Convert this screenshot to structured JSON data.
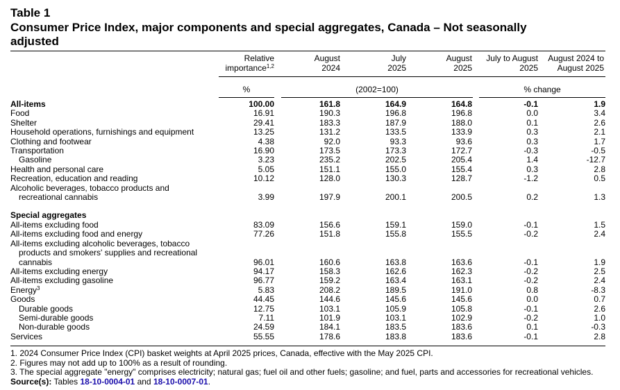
{
  "title": {
    "label": "Table 1",
    "line1": "Consumer Price Index, major components and special aggregates, Canada – Not seasonally",
    "line2": "adjusted"
  },
  "columns": [
    {
      "line1": "Relative",
      "line2": "importance",
      "sup": "1,2"
    },
    {
      "line1": "August",
      "line2": "2024"
    },
    {
      "line1": "July",
      "line2": "2025"
    },
    {
      "line1": "August",
      "line2": "2025"
    },
    {
      "line1": "July to August",
      "line2": "2025"
    },
    {
      "line1": "August 2024 to",
      "line2": "August 2025"
    }
  ],
  "units": {
    "weight": "%",
    "index": "(2002=100)",
    "change": "% change"
  },
  "rows": [
    {
      "label": "All-items",
      "values": [
        "100.00",
        "161.8",
        "164.9",
        "164.8",
        "-0.1",
        "1.9"
      ],
      "bold": true
    },
    {
      "label": "Food",
      "values": [
        "16.91",
        "190.3",
        "196.8",
        "196.8",
        "0.0",
        "3.4"
      ]
    },
    {
      "label": "Shelter",
      "values": [
        "29.41",
        "183.3",
        "187.9",
        "188.0",
        "0.1",
        "2.6"
      ]
    },
    {
      "label": "Household operations, furnishings and equipment",
      "values": [
        "13.25",
        "131.2",
        "133.5",
        "133.9",
        "0.3",
        "2.1"
      ]
    },
    {
      "label": "Clothing and footwear",
      "values": [
        "4.38",
        "92.0",
        "93.3",
        "93.6",
        "0.3",
        "1.7"
      ]
    },
    {
      "label": "Transportation",
      "values": [
        "16.90",
        "173.5",
        "173.3",
        "172.7",
        "-0.3",
        "-0.5"
      ]
    },
    {
      "label": "Gasoline",
      "values": [
        "3.23",
        "235.2",
        "202.5",
        "205.4",
        "1.4",
        "-12.7"
      ],
      "indent": 1
    },
    {
      "label": "Health and personal care",
      "values": [
        "5.05",
        "151.1",
        "155.0",
        "155.4",
        "0.3",
        "2.8"
      ]
    },
    {
      "label": "Recreation, education and reading",
      "values": [
        "10.12",
        "128.0",
        "130.3",
        "128.7",
        "-1.2",
        "0.5"
      ]
    },
    {
      "label": "Alcoholic beverages, tobacco products and",
      "values": [
        "",
        "",
        "",
        "",
        "",
        ""
      ]
    },
    {
      "label": "recreational cannabis",
      "values": [
        "3.99",
        "197.9",
        "200.1",
        "200.5",
        "0.2",
        "1.3"
      ],
      "indent": 1
    },
    {
      "gap": true
    },
    {
      "label": "Special aggregates",
      "values": [
        "",
        "",
        "",
        "",
        "",
        ""
      ],
      "bold": true
    },
    {
      "label": "All-items excluding food",
      "values": [
        "83.09",
        "156.6",
        "159.1",
        "159.0",
        "-0.1",
        "1.5"
      ]
    },
    {
      "label": "All-items excluding food and energy",
      "values": [
        "77.26",
        "151.8",
        "155.8",
        "155.5",
        "-0.2",
        "2.4"
      ]
    },
    {
      "label": "All-items excluding alcoholic beverages, tobacco",
      "values": [
        "",
        "",
        "",
        "",
        "",
        ""
      ]
    },
    {
      "label": "products and smokers' supplies and recreational",
      "values": [
        "",
        "",
        "",
        "",
        "",
        ""
      ],
      "indent": 1
    },
    {
      "label": "cannabis",
      "values": [
        "96.01",
        "160.6",
        "163.8",
        "163.6",
        "-0.1",
        "1.9"
      ],
      "indent": 1
    },
    {
      "label": "All-items excluding energy",
      "values": [
        "94.17",
        "158.3",
        "162.6",
        "162.3",
        "-0.2",
        "2.5"
      ]
    },
    {
      "label": "All-items excluding gasoline",
      "values": [
        "96.77",
        "159.2",
        "163.4",
        "163.1",
        "-0.2",
        "2.4"
      ]
    },
    {
      "label": "Energy",
      "sup": "3",
      "values": [
        "5.83",
        "208.2",
        "189.5",
        "191.0",
        "0.8",
        "-8.3"
      ]
    },
    {
      "label": "Goods",
      "values": [
        "44.45",
        "144.6",
        "145.6",
        "145.6",
        "0.0",
        "0.7"
      ]
    },
    {
      "label": "Durable goods",
      "values": [
        "12.75",
        "103.1",
        "105.9",
        "105.8",
        "-0.1",
        "2.6"
      ],
      "indent": 1
    },
    {
      "label": "Semi-durable goods",
      "values": [
        "7.11",
        "101.9",
        "103.1",
        "102.9",
        "-0.2",
        "1.0"
      ],
      "indent": 1
    },
    {
      "label": "Non-durable goods",
      "values": [
        "24.59",
        "184.1",
        "183.5",
        "183.6",
        "0.1",
        "-0.3"
      ],
      "indent": 1
    },
    {
      "label": "Services",
      "values": [
        "55.55",
        "178.6",
        "183.8",
        "183.6",
        "-0.1",
        "2.8"
      ]
    }
  ],
  "notes": [
    "1.  2024 Consumer Price Index (CPI) basket weights at April 2025 prices, Canada, effective with the May 2025 CPI.",
    "2.  Figures may not add up to 100% as a result of rounding.",
    "3.  The special aggregate \"energy\" comprises electricity; natural gas; fuel oil and other fuels; gasoline; and fuel, parts and accessories for recreational vehicles."
  ],
  "source": {
    "label": "Source(s):",
    "prefix": "Tables",
    "link1": "18-10-0004-01",
    "conj": "and",
    "link2": "18-10-0007-01",
    "suffix": "."
  }
}
